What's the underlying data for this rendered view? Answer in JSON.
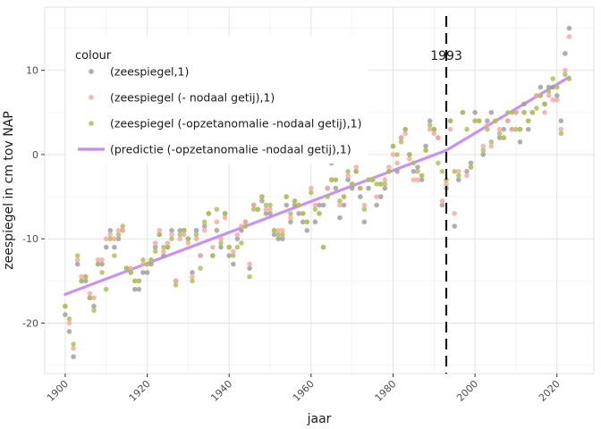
{
  "chart_data": {
    "type": "scatter",
    "title": "",
    "xlabel": "jaar",
    "ylabel": "zeespiegel in cm tov NAP",
    "xlim": [
      1895,
      2029
    ],
    "ylim": [
      -26,
      17.5
    ],
    "x_ticks": [
      1900,
      1920,
      1940,
      1960,
      1980,
      2000,
      2020
    ],
    "y_ticks": [
      -20,
      -10,
      0,
      10
    ],
    "grid": true,
    "legend_placement": "top-left",
    "legend_title": "colour",
    "annotation": {
      "label": "1993",
      "x": 1993
    },
    "colors": {
      "zeespiegel": "#9e9e9e",
      "nodaal": "#f4a8a0",
      "opzet": "#a9c059",
      "predictie": "#c58cf2",
      "vline": "#000000",
      "grid": "#e3e3e3"
    },
    "series": [
      {
        "name": "(zeespiegel,1)",
        "color_key": "zeespiegel",
        "kind": "points",
        "x": [
          1900,
          1901,
          1902,
          1903,
          1904,
          1905,
          1906,
          1907,
          1908,
          1909,
          1910,
          1911,
          1912,
          1913,
          1914,
          1915,
          1916,
          1917,
          1918,
          1919,
          1920,
          1921,
          1922,
          1923,
          1924,
          1925,
          1926,
          1927,
          1928,
          1929,
          1930,
          1931,
          1932,
          1933,
          1934,
          1935,
          1936,
          1937,
          1938,
          1939,
          1940,
          1941,
          1942,
          1943,
          1944,
          1945,
          1946,
          1947,
          1948,
          1949,
          1950,
          1951,
          1952,
          1953,
          1954,
          1955,
          1956,
          1957,
          1958,
          1959,
          1960,
          1961,
          1962,
          1963,
          1964,
          1965,
          1966,
          1967,
          1968,
          1969,
          1970,
          1971,
          1972,
          1973,
          1974,
          1975,
          1976,
          1977,
          1978,
          1979,
          1980,
          1981,
          1982,
          1983,
          1984,
          1985,
          1986,
          1987,
          1988,
          1989,
          1990,
          1991,
          1992,
          1993,
          1994,
          1995,
          1996,
          1997,
          1998,
          1999,
          2000,
          2001,
          2002,
          2003,
          2004,
          2005,
          2006,
          2007,
          2008,
          2009,
          2010,
          2011,
          2012,
          2013,
          2014,
          2015,
          2016,
          2017,
          2018,
          2019,
          2020,
          2021,
          2022,
          2023
        ],
        "y": [
          -19,
          -21,
          -24,
          -13,
          -15,
          -15,
          -17,
          -18,
          -13,
          -13,
          -11,
          -9,
          -11,
          -10,
          -9,
          -13.5,
          -14,
          -16,
          -16,
          -14,
          -14,
          -13,
          -11,
          -9.5,
          -12,
          -11,
          -9,
          -15,
          -9,
          -9,
          -10,
          -14,
          -9,
          -12,
          -8.5,
          -7,
          -12,
          -9,
          -11,
          -7,
          -12,
          -13,
          -10,
          -9,
          -8,
          -13.5,
          -6,
          -6.5,
          -5.5,
          -7,
          -7,
          -9.5,
          -10,
          -10,
          -6,
          -8,
          -6,
          -7,
          -8,
          -9,
          -0.5,
          -8,
          -6,
          -6,
          -4,
          -1,
          -4,
          -7.5,
          -6,
          -3,
          -4,
          -2,
          -5,
          -8,
          -4,
          -3,
          -6,
          -5,
          -4,
          -2,
          1,
          -2,
          2,
          3,
          0,
          -2,
          -1.5,
          -3,
          1,
          4,
          3,
          2,
          -6,
          -4,
          4,
          -8.5,
          -3,
          5,
          -2,
          -1,
          5,
          4,
          0,
          4,
          5,
          4,
          2,
          3,
          4,
          3,
          5,
          1.5,
          6,
          3,
          5,
          7,
          8,
          6,
          8,
          8,
          7,
          4,
          12,
          15
        ]
      },
      {
        "name": "(zeespiegel (- nodaal getij),1)",
        "color_key": "nodaal",
        "kind": "points",
        "x": [
          1900,
          1901,
          1902,
          1903,
          1904,
          1905,
          1906,
          1907,
          1908,
          1909,
          1910,
          1911,
          1912,
          1913,
          1914,
          1915,
          1916,
          1917,
          1918,
          1919,
          1920,
          1921,
          1922,
          1923,
          1924,
          1925,
          1926,
          1927,
          1928,
          1929,
          1930,
          1931,
          1932,
          1933,
          1934,
          1935,
          1936,
          1937,
          1938,
          1939,
          1940,
          1941,
          1942,
          1943,
          1944,
          1945,
          1946,
          1947,
          1948,
          1949,
          1950,
          1951,
          1952,
          1953,
          1954,
          1955,
          1956,
          1957,
          1958,
          1959,
          1960,
          1961,
          1962,
          1963,
          1964,
          1965,
          1966,
          1967,
          1968,
          1969,
          1970,
          1971,
          1972,
          1973,
          1974,
          1975,
          1976,
          1977,
          1978,
          1979,
          1980,
          1981,
          1982,
          1983,
          1984,
          1985,
          1986,
          1987,
          1988,
          1989,
          1990,
          1991,
          1992,
          1993,
          1994,
          1995,
          1996,
          1997,
          1998,
          1999,
          2000,
          2001,
          2002,
          2003,
          2004,
          2005,
          2006,
          2007,
          2008,
          2009,
          2010,
          2011,
          2012,
          2013,
          2014,
          2015,
          2016,
          2017,
          2018,
          2019,
          2020,
          2021,
          2022,
          2023
        ],
        "y": [
          -18,
          -20,
          -23,
          -12.5,
          -14.5,
          -14.5,
          -16.5,
          -17,
          -12.5,
          -12.5,
          -10,
          -9.5,
          -10,
          -9,
          -9,
          -13.5,
          -13.5,
          -15,
          -15,
          -13,
          -13,
          -12.5,
          -10.5,
          -9,
          -11.5,
          -10.5,
          -9.5,
          -15,
          -10,
          -9.5,
          -10.5,
          -14.5,
          -10,
          -12,
          -9,
          -7,
          -11,
          -8,
          -10,
          -7.5,
          -11,
          -11.5,
          -9.5,
          -8.5,
          -8,
          -13,
          -6,
          -6.5,
          -5,
          -6.5,
          -6.5,
          -9,
          -9,
          -9,
          -5,
          -7.5,
          -5.5,
          -6,
          -7,
          -8,
          -4,
          -6,
          -7,
          -11,
          -4,
          -3,
          -3,
          -6,
          -5,
          -2.5,
          -3.5,
          -1.5,
          -4,
          -6,
          -3,
          -3,
          -5,
          -3.5,
          -3,
          -1.5,
          0,
          -1,
          2,
          2.5,
          -0.5,
          -3,
          -3,
          -2.5,
          0.5,
          3,
          2.5,
          2,
          -5.5,
          -3.5,
          3,
          -7,
          -2,
          5,
          -2.5,
          -1.5,
          4,
          4,
          1,
          3.5,
          1,
          4,
          3,
          2,
          4,
          3,
          5,
          3,
          5,
          4,
          5,
          7,
          7,
          5,
          7,
          6.5,
          6.5,
          3,
          10,
          14
        ]
      },
      {
        "name": "(zeespiegel (-opzetanomalie -nodaal getij),1)",
        "color_key": "opzet",
        "kind": "points",
        "x": [
          1900,
          1901,
          1902,
          1903,
          1904,
          1905,
          1906,
          1907,
          1908,
          1909,
          1910,
          1911,
          1912,
          1913,
          1914,
          1915,
          1916,
          1917,
          1918,
          1919,
          1920,
          1921,
          1922,
          1923,
          1924,
          1925,
          1926,
          1927,
          1928,
          1929,
          1930,
          1931,
          1932,
          1933,
          1934,
          1935,
          1936,
          1937,
          1938,
          1939,
          1940,
          1941,
          1942,
          1943,
          1944,
          1945,
          1946,
          1947,
          1948,
          1949,
          1950,
          1951,
          1952,
          1953,
          1954,
          1955,
          1956,
          1957,
          1958,
          1959,
          1960,
          1961,
          1962,
          1963,
          1964,
          1965,
          1966,
          1967,
          1968,
          1969,
          1970,
          1971,
          1972,
          1973,
          1974,
          1975,
          1976,
          1977,
          1978,
          1979,
          1980,
          1981,
          1982,
          1983,
          1984,
          1985,
          1986,
          1987,
          1988,
          1989,
          1990,
          1991,
          1992,
          1993,
          1994,
          1995,
          1996,
          1997,
          1998,
          1999,
          2000,
          2001,
          2002,
          2003,
          2004,
          2005,
          2006,
          2007,
          2008,
          2009,
          2010,
          2011,
          2012,
          2013,
          2014,
          2015,
          2016,
          2017,
          2018,
          2019,
          2020,
          2021,
          2022,
          2023
        ],
        "y": [
          -18,
          -19.5,
          -22.5,
          -12,
          -15,
          -14.5,
          -17,
          -18.5,
          -13,
          -14,
          -16,
          -10,
          -12,
          -9.5,
          -8.5,
          -13.5,
          -14,
          -15,
          -15,
          -12.5,
          -13,
          -12.5,
          -11.5,
          -9.5,
          -11,
          -11,
          -10,
          -15.5,
          -9.5,
          -9,
          -10,
          -15,
          -9.5,
          -13.5,
          -8,
          -7,
          -12,
          -6.5,
          -10.5,
          -7,
          -11,
          -12,
          -11,
          -10.5,
          -8.5,
          -14.5,
          -6.5,
          -6.5,
          -5,
          -6,
          -6,
          -9,
          -9.5,
          -9.5,
          -5,
          -7,
          -5.5,
          -6,
          -7,
          -8,
          -4.5,
          -6.5,
          -7,
          -11,
          -5,
          -3,
          -3,
          -5.5,
          -5,
          -2,
          -3.5,
          -2,
          -4,
          -6.5,
          -3,
          -3,
          -3.5,
          -3.5,
          -3.5,
          -2,
          1,
          0,
          1.5,
          3,
          0,
          -1,
          -2,
          -2.5,
          0.5,
          3.5,
          3,
          -1,
          -2,
          -3,
          4,
          -2,
          -2.5,
          5,
          3,
          -1.5,
          4,
          4,
          0.5,
          3,
          1.5,
          4,
          2.5,
          2,
          5,
          5,
          3,
          3,
          5,
          4,
          5,
          5.5,
          7,
          6,
          7.5,
          9,
          8,
          2.5,
          9.5,
          9
        ]
      },
      {
        "name": "(predictie (-opzetanomalie -nodaal getij),1)",
        "color_key": "predictie",
        "kind": "line",
        "x": [
          1900,
          1993,
          2023
        ],
        "y": [
          -16.6,
          0.5,
          9.2
        ]
      }
    ]
  }
}
